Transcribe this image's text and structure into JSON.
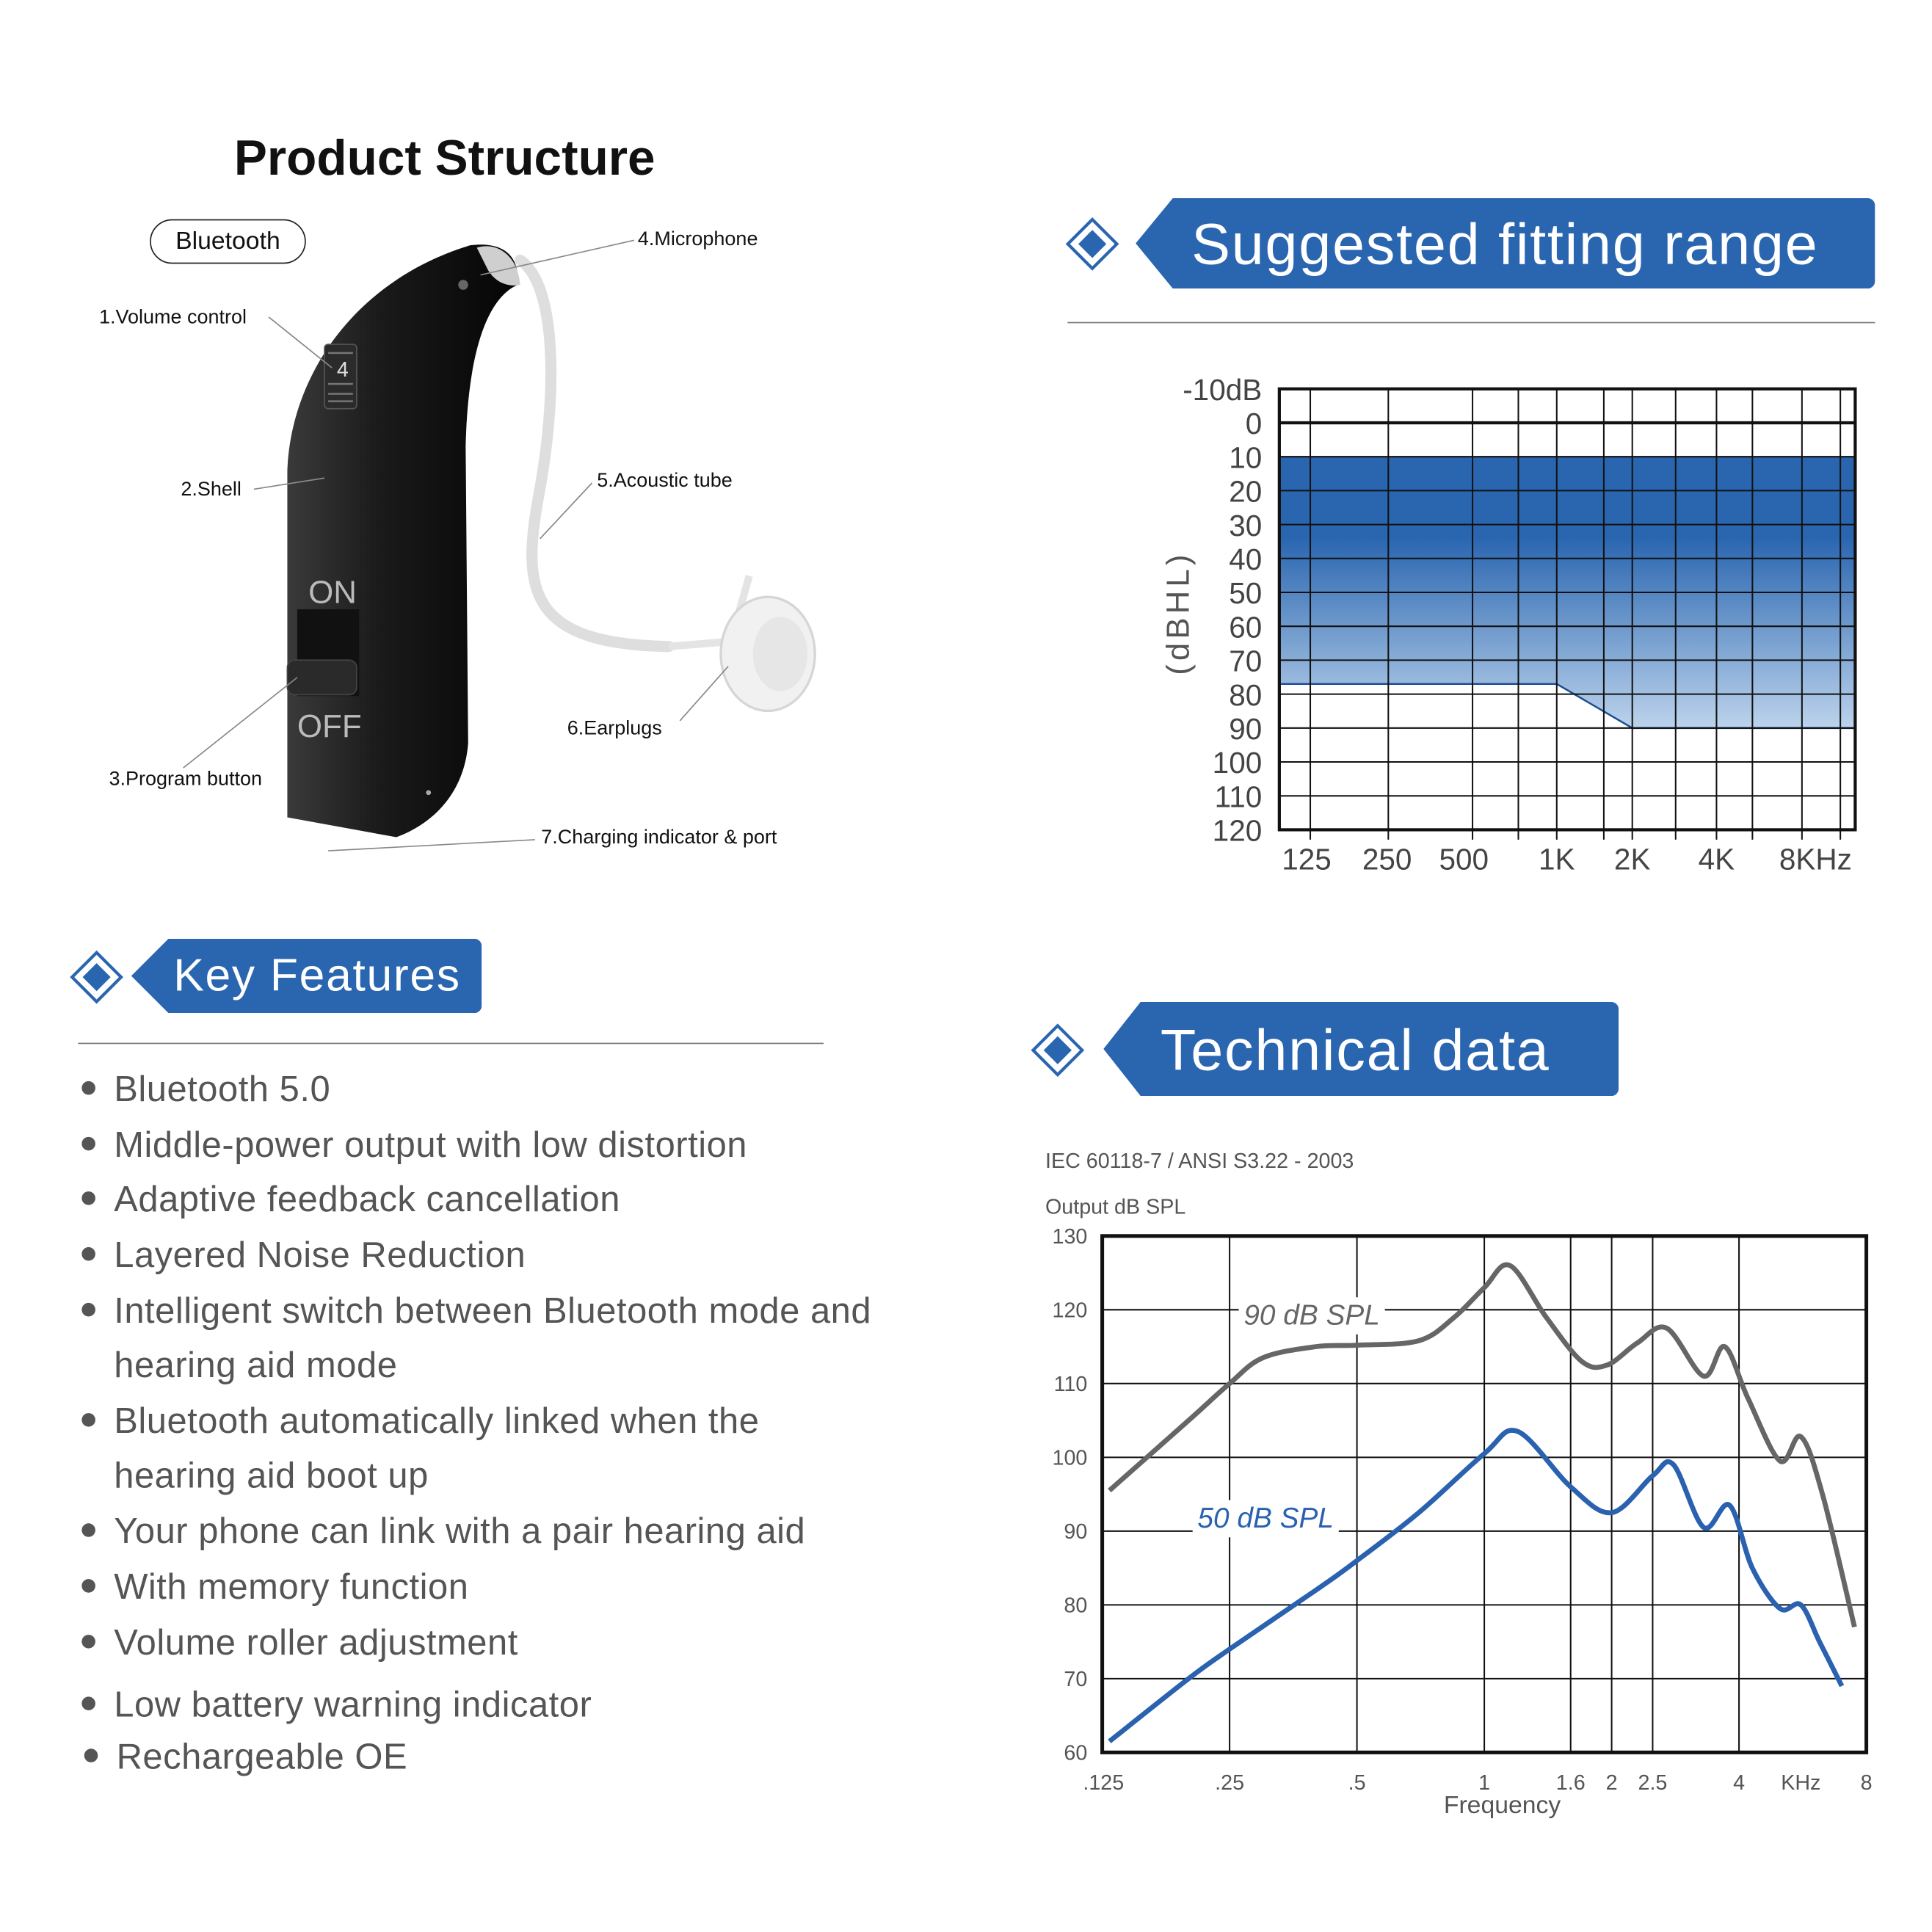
{
  "product": {
    "title": "Product Structure",
    "bluetooth_badge": "Bluetooth",
    "device_labels": {
      "on": "ON",
      "off": "OFF",
      "volume_digit": "4"
    },
    "parts": [
      "1.Volume control",
      "2.Shell",
      "3.Program button",
      "4.Microphone",
      "5.Acoustic tube",
      "6.Earplugs",
      "7.Charging indicator & port"
    ]
  },
  "fitting": {
    "header": "Suggested fitting range",
    "accent": "#2a66b0"
  },
  "features": {
    "header": "Key Features",
    "items": [
      [
        "Bluetooth 5.0"
      ],
      [
        "Middle-power output with low distortion"
      ],
      [
        "Adaptive feedback cancellation"
      ],
      [
        "Layered Noise Reduction"
      ],
      [
        "Intelligent switch between Bluetooth mode and",
        "hearing aid mode"
      ],
      [
        "Bluetooth automatically linked when the",
        "hearing aid boot up"
      ],
      [
        "Your phone can link with a pair hearing aid"
      ],
      [
        "With memory function"
      ],
      [
        "Volume roller adjustment"
      ],
      [
        "Low battery warning indicator"
      ],
      [
        "Rechargeable OE"
      ]
    ]
  },
  "technical": {
    "header": "Technical data",
    "standard": "IEC 60118-7 / ANSI S3.22 - 2003"
  },
  "chart_data": [
    {
      "type": "area",
      "title": "",
      "ylabel": "(dBHL)",
      "y_ticks": [
        "-10dB",
        "0",
        "10",
        "20",
        "30",
        "40",
        "50",
        "60",
        "70",
        "80",
        "90",
        "100",
        "110",
        "120"
      ],
      "x_ticks": [
        "125",
        "250",
        "500",
        "1K",
        "2K",
        "4K",
        "8KHz"
      ],
      "ylim": [
        -10,
        120
      ],
      "y_inverted": true,
      "grid": true,
      "fill_color": "#2a66b0",
      "band": {
        "upper_dB": [
          {
            "x": "125",
            "y": 10
          },
          {
            "x": "8KHz",
            "y": 10
          }
        ],
        "lower_dB": [
          {
            "x": "125",
            "y": 77
          },
          {
            "x": "1K",
            "y": 77
          },
          {
            "x": "2K",
            "y": 90
          },
          {
            "x": "8KHz",
            "y": 90
          }
        ]
      }
    },
    {
      "type": "line",
      "title": "Output dB SPL",
      "xlabel": "Frequency",
      "x_ticks": [
        ".125",
        ".25",
        ".5",
        "1",
        "1.6",
        "2",
        "2.5",
        "4",
        "KHz",
        "8"
      ],
      "y_ticks": [
        "130",
        "120",
        "110",
        "100",
        "90",
        "80",
        "70",
        "60"
      ],
      "ylim": [
        60,
        130
      ],
      "xlim_khz": [
        0.125,
        8
      ],
      "x_scale": "log",
      "grid": true,
      "series": [
        {
          "name": "90 dB SPL",
          "color": "#666666",
          "x": [
            0.13,
            0.2,
            0.25,
            0.3,
            0.4,
            0.5,
            0.7,
            0.85,
            1.0,
            1.15,
            1.4,
            1.7,
            1.95,
            2.3,
            2.7,
            3.3,
            3.7,
            4.2,
            5.0,
            5.6,
            6.3,
            7.5
          ],
          "y": [
            95.5,
            105,
            110,
            113.5,
            115,
            115.2,
            115.8,
            119,
            123,
            126,
            119,
            113,
            112.5,
            115.5,
            117.5,
            111,
            115,
            108,
            99.5,
            102.8,
            95,
            77
          ]
        },
        {
          "name": "50 dB SPL",
          "color": "#2a62b0",
          "x": [
            0.13,
            0.2,
            0.25,
            0.4,
            0.5,
            0.7,
            1.0,
            1.2,
            1.6,
            2.0,
            2.5,
            2.8,
            3.3,
            3.8,
            4.3,
            5.0,
            5.6,
            6.2,
            7.0
          ],
          "y": [
            61.5,
            70,
            74,
            82,
            86,
            92.5,
            100.5,
            103.5,
            96,
            92.5,
            97.5,
            99,
            90.5,
            93.5,
            85,
            79.5,
            80,
            75,
            69
          ]
        }
      ]
    }
  ]
}
